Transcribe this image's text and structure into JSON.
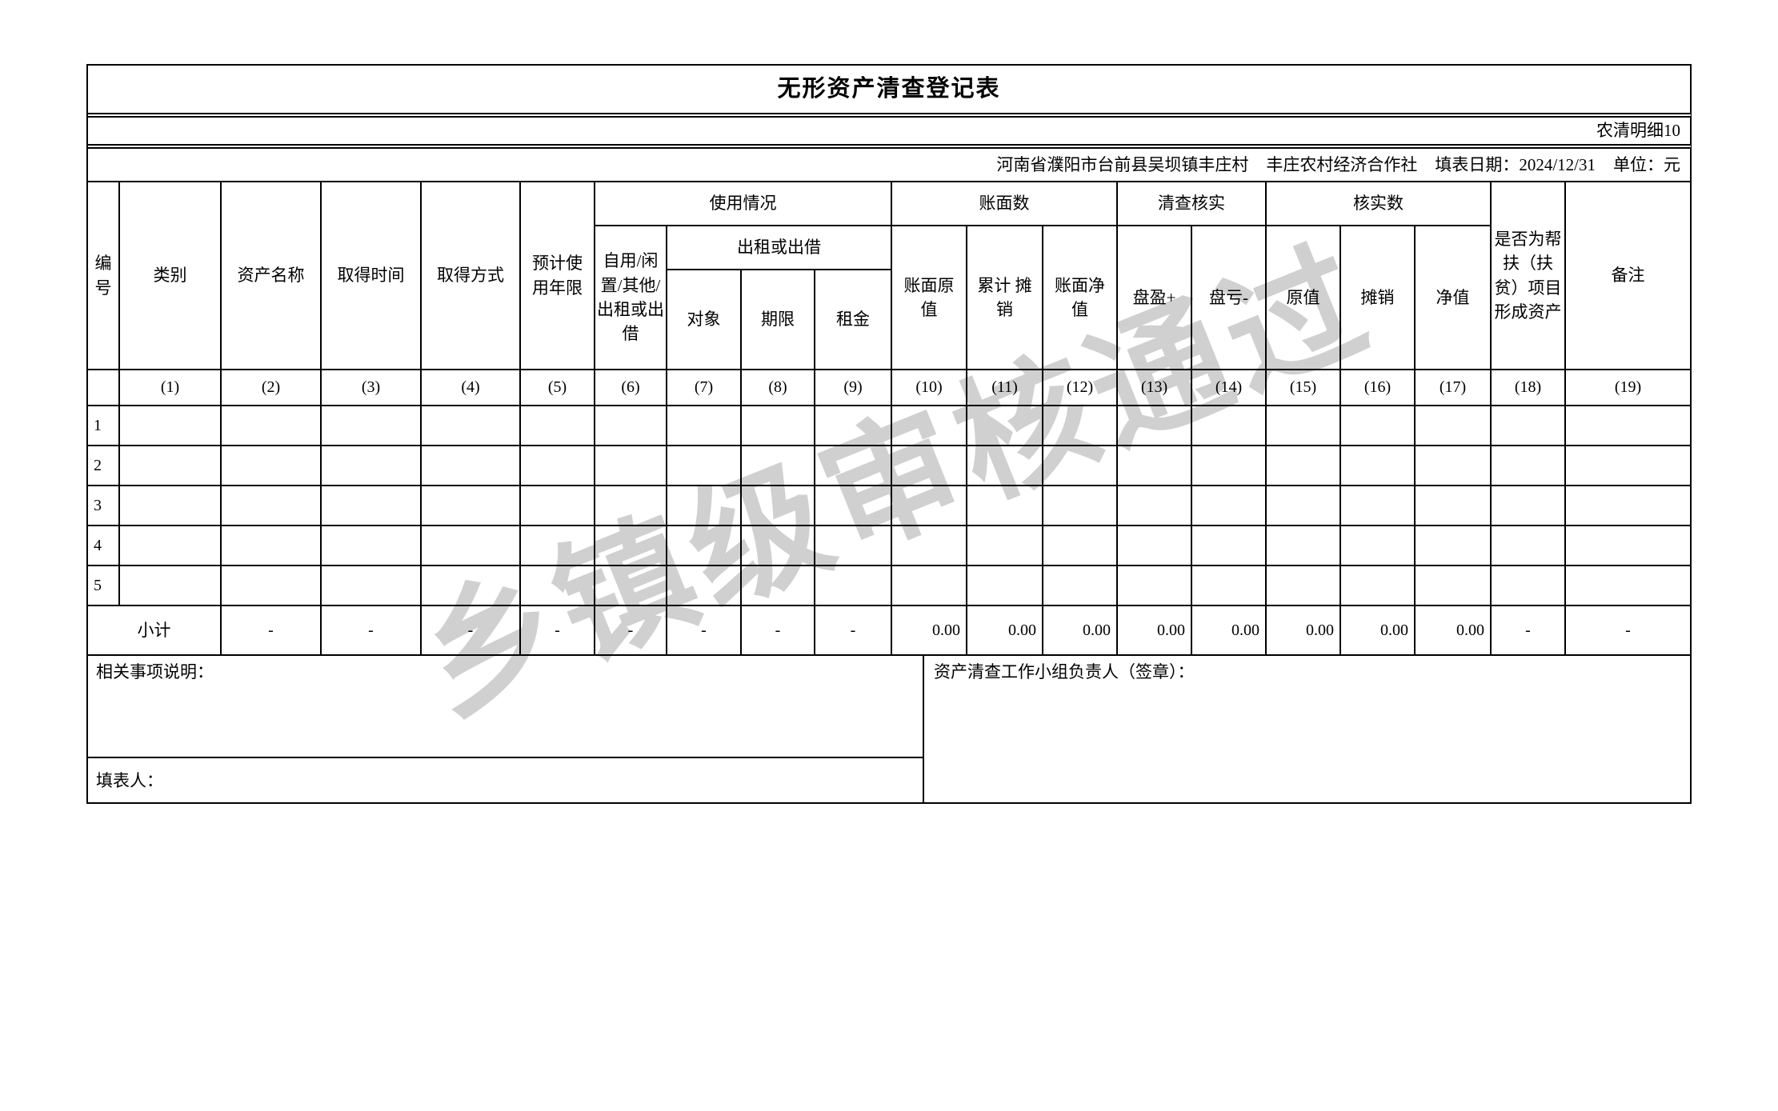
{
  "title": "无形资产清查登记表",
  "form_code": "农清明细10",
  "info": {
    "location": "河南省濮阳市台前县吴坝镇丰庄村",
    "organization": "丰庄农村经济合作社",
    "date_label": "填表日期：2024/12/31",
    "unit_label": "单位：元"
  },
  "header": {
    "no": "编号",
    "category": "类别",
    "asset_name": "资产名称",
    "acquire_time": "取得时间",
    "acquire_method": "取得方式",
    "expected_life": "预计使用年限",
    "usage": "使用情况",
    "self_use": "自用/闲置/其他/出租或出借",
    "rent_or_lend": "出租或出借",
    "rent_target": "对象",
    "rent_term": "期限",
    "rent_fee": "租金",
    "book": "账面数",
    "book_original": "账面原值",
    "book_amort": "累计 摊销",
    "book_net": "账面净值",
    "check": "清查核实",
    "surplus": "盘盈+",
    "deficit": "盘亏-",
    "verified": "核实数",
    "verified_original": "原值",
    "verified_amort": "摊销",
    "verified_net": "净值",
    "poverty": "是否为帮扶（扶贫）项目形成资产",
    "remark": "备注"
  },
  "column_numbers": [
    "",
    "(1)",
    "(2)",
    "(3)",
    "(4)",
    "(5)",
    "(6)",
    "(7)",
    "(8)",
    "(9)",
    "(10)",
    "(11)",
    "(12)",
    "(13)",
    "(14)",
    "(15)",
    "(16)",
    "(17)",
    "(18)",
    "(19)"
  ],
  "rows": [
    "1",
    "2",
    "3",
    "4",
    "5"
  ],
  "subtotal": {
    "label": "小计",
    "values": [
      "-",
      "-",
      "-",
      "-",
      "-",
      "-",
      "-",
      "-",
      "0.00",
      "0.00",
      "0.00",
      "0.00",
      "0.00",
      "0.00",
      "0.00",
      "0.00",
      "-",
      "-"
    ]
  },
  "footer": {
    "notes_label": "相关事项说明：",
    "signer_label": "资产清查工作小组负责人（签章）：",
    "filler_label": "填表人："
  },
  "watermark": "乡镇级审核通过",
  "colors": {
    "border": "#000000",
    "text": "#000000",
    "watermark_gray": "#969696",
    "background": "#ffffff"
  }
}
